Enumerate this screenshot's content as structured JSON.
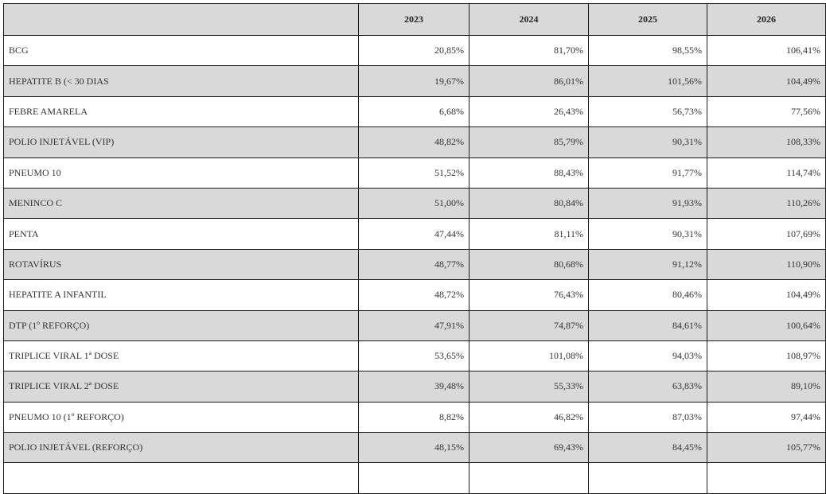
{
  "table": {
    "columns": [
      "",
      "2023",
      "2024",
      "2025",
      "2026"
    ],
    "rows": [
      {
        "name": "BCG",
        "values": [
          "20,85%",
          "81,70%",
          "98,55%",
          "106,41%"
        ]
      },
      {
        "name": "HEPATITE B (< 30 DIAS",
        "values": [
          "19,67%",
          "86,01%",
          "101,56%",
          "104,49%"
        ]
      },
      {
        "name": "FEBRE AMARELA",
        "values": [
          "6,68%",
          "26,43%",
          "56,73%",
          "77,56%"
        ]
      },
      {
        "name": "POLIO INJETÁVEL (VIP)",
        "values": [
          "48,82%",
          "85,79%",
          "90,31%",
          "108,33%"
        ]
      },
      {
        "name": "PNEUMO 10",
        "values": [
          "51,52%",
          "88,43%",
          "91,77%",
          "114,74%"
        ]
      },
      {
        "name": "MENINCO C",
        "values": [
          "51,00%",
          "80,84%",
          "91,93%",
          "110,26%"
        ]
      },
      {
        "name": "PENTA",
        "values": [
          "47,44%",
          "81,11%",
          "90,31%",
          "107,69%"
        ]
      },
      {
        "name": "ROTAVÍRUS",
        "values": [
          "48,77%",
          "80,68%",
          "91,12%",
          "110,90%"
        ]
      },
      {
        "name": "HEPATITE A INFANTIL",
        "values": [
          "48,72%",
          "76,43%",
          "80,46%",
          "104,49%"
        ]
      },
      {
        "name": "DTP (1º REFORÇO)",
        "values": [
          "47,91%",
          "74,87%",
          "84,61%",
          "100,64%"
        ]
      },
      {
        "name": "TRIPLICE VIRAL 1ª DOSE",
        "values": [
          "53,65%",
          "101,08%",
          "94,03%",
          "108,97%"
        ]
      },
      {
        "name": "TRIPLICE VIRAL 2ª DOSE",
        "values": [
          "39,48%",
          "55,33%",
          "63,83%",
          "89,10%"
        ]
      },
      {
        "name": "PNEUMO 10 (1º REFORÇO)",
        "values": [
          "8,82%",
          "46,82%",
          "87,03%",
          "97,44%"
        ]
      },
      {
        "name": "POLIO INJETÁVEL (REFORÇO)",
        "values": [
          "48,15%",
          "69,43%",
          "84,45%",
          "105,77%"
        ]
      }
    ]
  }
}
